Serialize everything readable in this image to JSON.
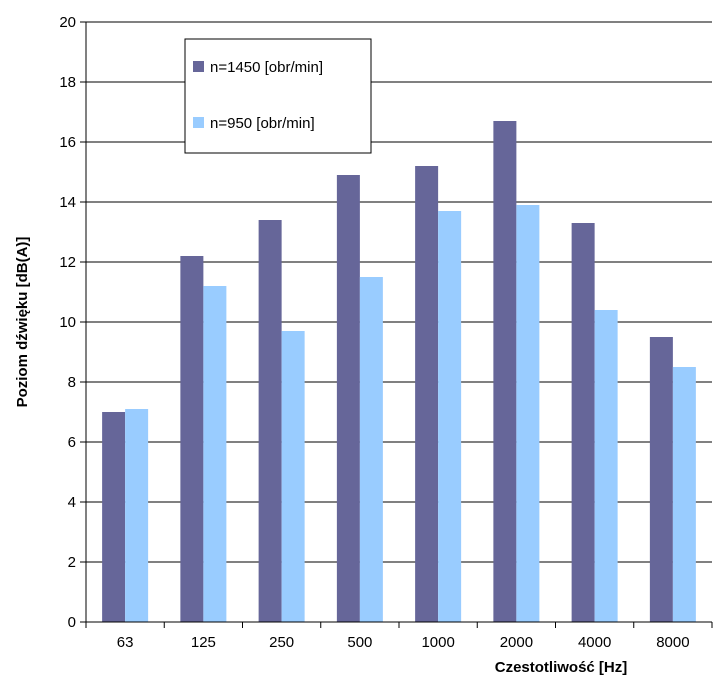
{
  "chart_data": {
    "type": "bar",
    "categories": [
      "63",
      "125",
      "250",
      "500",
      "1000",
      "2000",
      "4000",
      "8000"
    ],
    "series": [
      {
        "name": "n=1450 [obr/min]",
        "values": [
          7.0,
          12.2,
          13.4,
          14.9,
          15.2,
          16.7,
          13.3,
          9.5
        ],
        "color": "#666699"
      },
      {
        "name": "n=950 [obr/min]",
        "values": [
          7.1,
          11.2,
          9.7,
          11.5,
          13.7,
          13.9,
          10.4,
          8.5
        ],
        "color": "#99ccff"
      }
    ],
    "xlabel": "Czestotliwość [Hz]",
    "ylabel": "Poziom dźwięku [dB(A)]",
    "ylim": [
      0,
      20
    ],
    "yticks": [
      "0",
      "2",
      "4",
      "6",
      "8",
      "10",
      "12",
      "14",
      "16",
      "18",
      "20"
    ],
    "grid": true,
    "legend_position": "top-left"
  }
}
